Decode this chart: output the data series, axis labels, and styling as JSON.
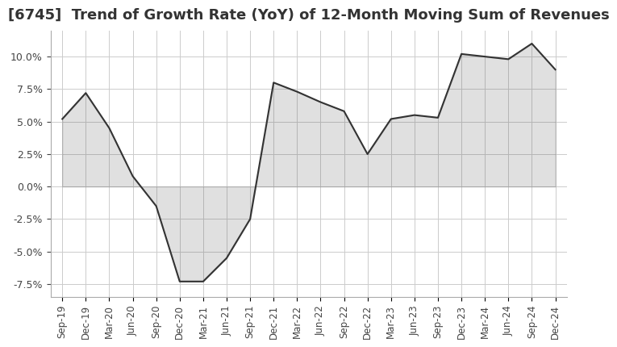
{
  "title": "[6745]  Trend of Growth Rate (YoY) of 12-Month Moving Sum of Revenues",
  "title_fontsize": 13,
  "background_color": "#ffffff",
  "plot_background_color": "#ffffff",
  "grid_color": "#cccccc",
  "line_color": "#333333",
  "ylim": [
    -8.5,
    12.0
  ],
  "yticks": [
    -7.5,
    -5.0,
    -2.5,
    0.0,
    2.5,
    5.0,
    7.5,
    10.0
  ],
  "x_labels": [
    "Sep-19",
    "Dec-19",
    "Mar-20",
    "Jun-20",
    "Sep-20",
    "Dec-20",
    "Mar-21",
    "Jun-21",
    "Sep-21",
    "Dec-21",
    "Mar-22",
    "Jun-22",
    "Sep-22",
    "Dec-22",
    "Mar-23",
    "Jun-23",
    "Sep-23",
    "Dec-23",
    "Mar-24",
    "Jun-24",
    "Sep-24",
    "Dec-24"
  ],
  "values": [
    5.2,
    7.2,
    4.5,
    0.8,
    -1.5,
    -7.3,
    -7.3,
    -5.5,
    -2.5,
    8.0,
    7.3,
    6.5,
    5.8,
    2.5,
    5.2,
    5.5,
    5.3,
    10.2,
    10.0,
    9.8,
    11.0,
    9.0
  ]
}
